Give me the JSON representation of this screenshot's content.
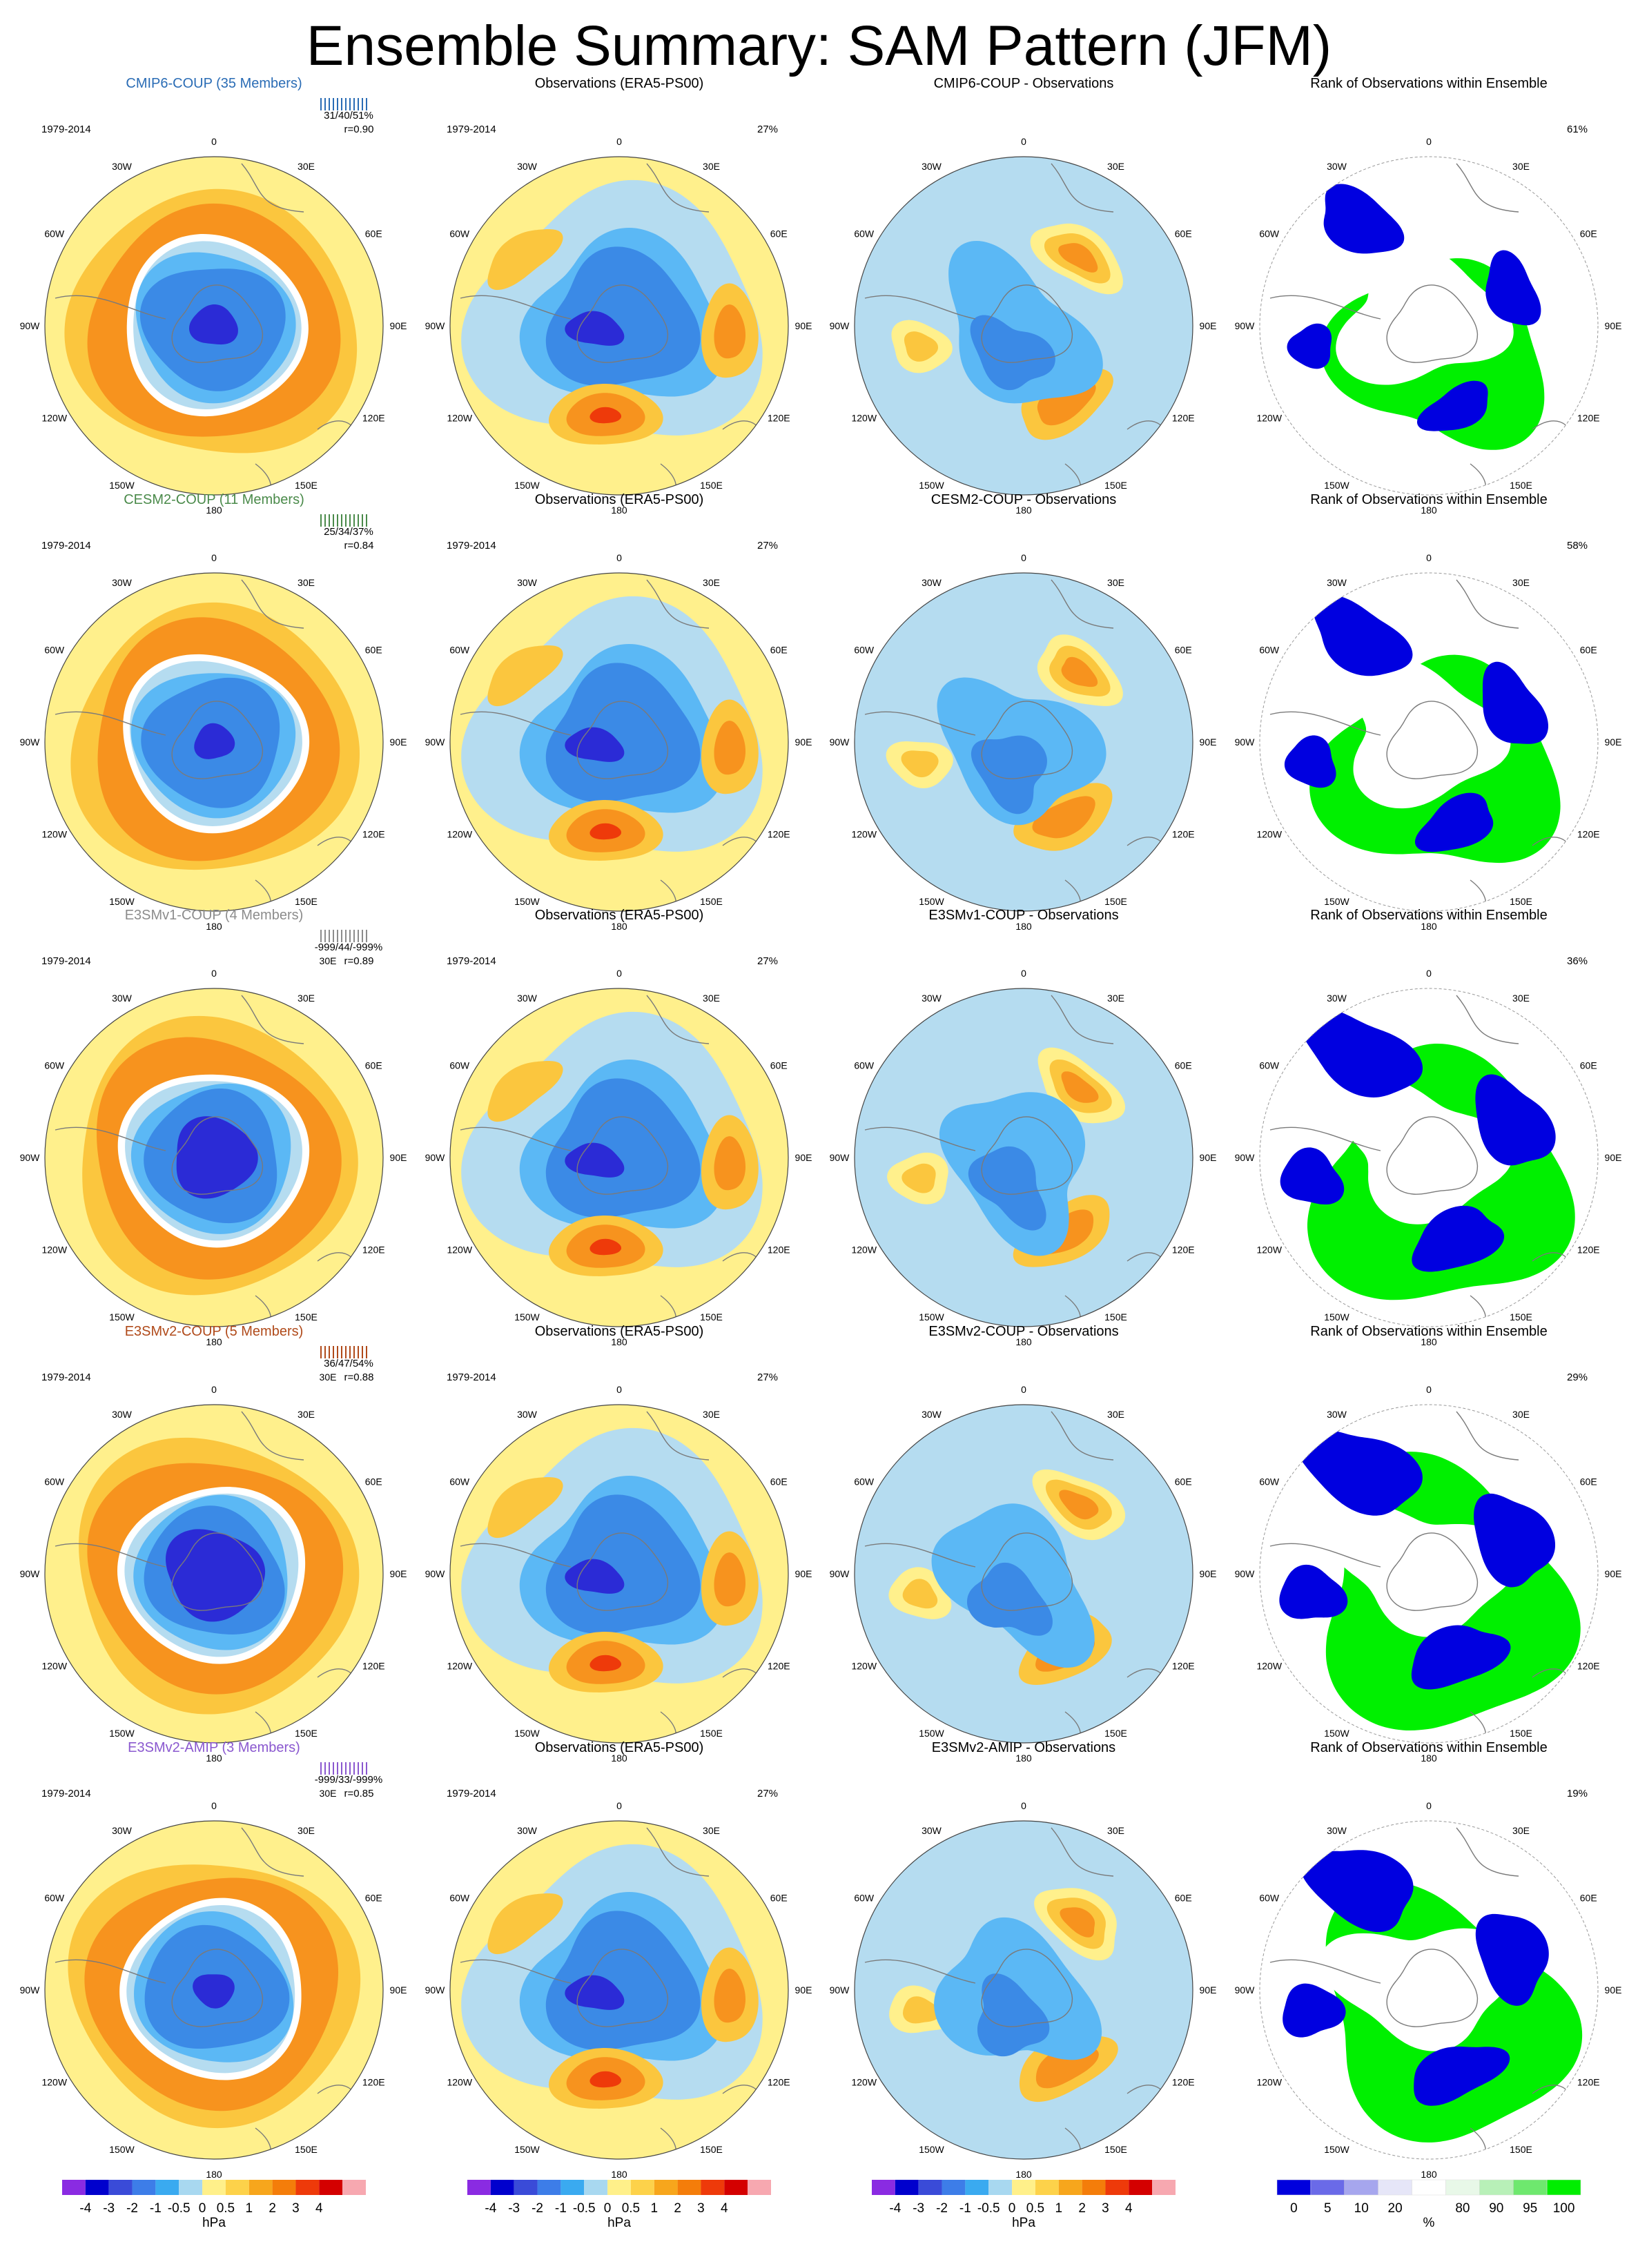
{
  "title": "Ensemble Summary: SAM Pattern (JFM)",
  "colors": {
    "diff_scale": [
      "#8a2be2",
      "#0000cd",
      "#3a4bd8",
      "#3d7de8",
      "#3aaaf0",
      "#a8d8f0",
      "#fff08a",
      "#fdd24a",
      "#f7a61c",
      "#f47d0a",
      "#ee3a0a",
      "#d40000",
      "#f7a8b0"
    ],
    "rank_scale": [
      "#0000dd",
      "#6a6ae8",
      "#a6a6ee",
      "#e6e6f8",
      "#ffffff",
      "#e8f8e8",
      "#b8f0b8",
      "#6ee86e",
      "#00ee00"
    ],
    "coast": "#7a7a7a",
    "neg_strong": "#2b2bd6",
    "neg_mid": "#3b8ae6",
    "neg_light": "#5bb8f5",
    "neg_pale": "#b5dcf0",
    "pos_pale": "#fff08c",
    "pos_light": "#fbc63e",
    "pos_mid": "#f7931e",
    "pos_strong": "#ee3a0a",
    "rank_blue": "#0000e0",
    "rank_green": "#00f000"
  },
  "model_title_colors": {
    "cmip6": "#2a6cb5",
    "cesm2": "#4a8a4a",
    "e3smv1": "#8c8c8c",
    "e3smv2": "#b04a1a",
    "e3smv2amip": "#8a58cf"
  },
  "lon_labels": [
    "0",
    "30E",
    "60E",
    "90E",
    "120E",
    "150E",
    "180",
    "150W",
    "120W",
    "90W",
    "60W",
    "30W"
  ],
  "rows": [
    {
      "id": "cmip6",
      "model_title": "CMIP6-COUP (35 Members)",
      "period": "1979-2014",
      "stats": "31/40/51%",
      "corr": "r=0.90",
      "obs_title": "Observations (ERA5-PS00)",
      "obs_pct": "27%",
      "diff_title": "CMIP6-COUP - Observations",
      "rank_title": "Rank of Observations within Ensemble",
      "rank_pct": "61%",
      "model_strength": 3.2,
      "blue_frac": 0.22
    },
    {
      "id": "cesm2",
      "model_title": "CESM2-COUP (11 Members)",
      "period": "1979-2014",
      "stats": "25/34/37%",
      "corr": "r=0.84",
      "obs_title": "Observations (ERA5-PS00)",
      "obs_pct": "27%",
      "diff_title": "CESM2-COUP - Observations",
      "rank_title": "Rank of Observations within Ensemble",
      "rank_pct": "58%",
      "model_strength": 2.6,
      "blue_frac": 0.3
    },
    {
      "id": "e3smv1",
      "model_title": "E3SMv1-COUP (4 Members)",
      "period": "1979-2014",
      "stats": "-999/44/-999%",
      "corr": "r=0.89",
      "extra_label": "30E",
      "obs_title": "Observations (ERA5-PS00)",
      "obs_pct": "27%",
      "diff_title": "E3SMv1-COUP - Observations",
      "rank_title": "Rank of Observations within Ensemble",
      "rank_pct": "36%",
      "model_strength": 3.8,
      "blue_frac": 0.4
    },
    {
      "id": "e3smv2",
      "model_title": "E3SMv2-COUP (5 Members)",
      "period": "1979-2014",
      "stats": "36/47/54%",
      "corr": "r=0.88",
      "extra_label": "30E",
      "obs_title": "Observations (ERA5-PS00)",
      "obs_pct": "27%",
      "diff_title": "E3SMv2-COUP - Observations",
      "rank_title": "Rank of Observations within Ensemble",
      "rank_pct": "29%",
      "model_strength": 4.0,
      "blue_frac": 0.42
    },
    {
      "id": "e3smv2amip",
      "model_title": "E3SMv2-AMIP (3 Members)",
      "period": "1979-2014",
      "stats": "-999/33/-999%",
      "corr": "r=0.85",
      "extra_label": "30E",
      "obs_title": "Observations (ERA5-PS00)",
      "obs_pct": "27%",
      "diff_title": "E3SMv2-AMIP - Observations",
      "rank_title": "Rank of Observations within Ensemble",
      "rank_pct": "19%",
      "model_strength": 3.0,
      "blue_frac": 0.38
    }
  ],
  "colorbars": [
    {
      "ticks": [
        "-4",
        "-3",
        "-2",
        "-1",
        "-0.5",
        "0",
        "0.5",
        "1",
        "2",
        "3",
        "4"
      ],
      "units": "hPa"
    },
    {
      "ticks": [
        "-4",
        "-3",
        "-2",
        "-1",
        "-0.5",
        "0",
        "0.5",
        "1",
        "2",
        "3",
        "4"
      ],
      "units": "hPa"
    },
    {
      "ticks": [
        "-4",
        "-3",
        "-2",
        "-1",
        "-0.5",
        "0",
        "0.5",
        "1",
        "2",
        "3",
        "4"
      ],
      "units": "hPa"
    },
    {
      "ticks": [
        "0",
        "5",
        "10",
        "20",
        "80",
        "90",
        "95",
        "100"
      ],
      "units": "%"
    }
  ],
  "chart_data": {
    "type": "heatmap",
    "title": "Ensemble Summary: SAM Pattern (JFM)",
    "projection": "south-polar-stereographic",
    "columns": [
      "model ensemble mean",
      "Observations (ERA5-PS00)",
      "model - Observations",
      "Rank of Observations within Ensemble"
    ],
    "models": [
      "CMIP6-COUP (35 Members)",
      "CESM2-COUP (11 Members)",
      "E3SMv1-COUP (4 Members)",
      "E3SMv2-COUP (5 Members)",
      "E3SMv2-AMIP (3 Members)"
    ],
    "period": "1979-2014",
    "correlations": [
      0.9,
      0.84,
      0.89,
      0.88,
      0.85
    ],
    "explained_variance": [
      "31/40/51%",
      "25/34/37%",
      "-999/44/-999%",
      "36/47/54%",
      "-999/33/-999%"
    ],
    "obs_percent": "27%",
    "rank_percent": [
      "61%",
      "58%",
      "36%",
      "29%",
      "19%"
    ],
    "contour_levels_hPa": [
      -4,
      -3,
      -2,
      -1,
      -0.5,
      0,
      0.5,
      1,
      2,
      3,
      4
    ],
    "rank_levels_percent": [
      0,
      5,
      10,
      20,
      80,
      90,
      95,
      100
    ],
    "units": [
      "hPa",
      "hPa",
      "hPa",
      "%"
    ]
  }
}
